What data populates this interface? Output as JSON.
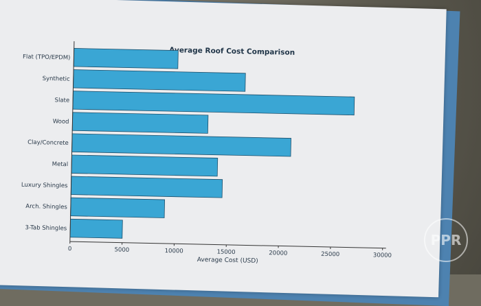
{
  "chart_data": {
    "type": "bar",
    "orientation": "horizontal",
    "title": "Average Roof Cost Comparison",
    "xlabel": "Average Cost (USD)",
    "ylabel": "",
    "categories": [
      "3-Tab Shingles",
      "Arch. Shingles",
      "Luxury Shingles",
      "Metal",
      "Clay/Concrete",
      "Wood",
      "Slate",
      "Synthetic",
      "Flat (TPO/EPDM)"
    ],
    "values": [
      5000,
      9000,
      14500,
      14000,
      21000,
      13000,
      27000,
      16500,
      10000
    ],
    "xlim": [
      0,
      30000
    ],
    "xticks": [
      "0",
      "5000",
      "10000",
      "15000",
      "20000",
      "25000",
      "30000"
    ],
    "grid": false,
    "bar_color": "#3aa6d4",
    "edge_color": "#1d4f6b"
  },
  "watermark": "PPR"
}
